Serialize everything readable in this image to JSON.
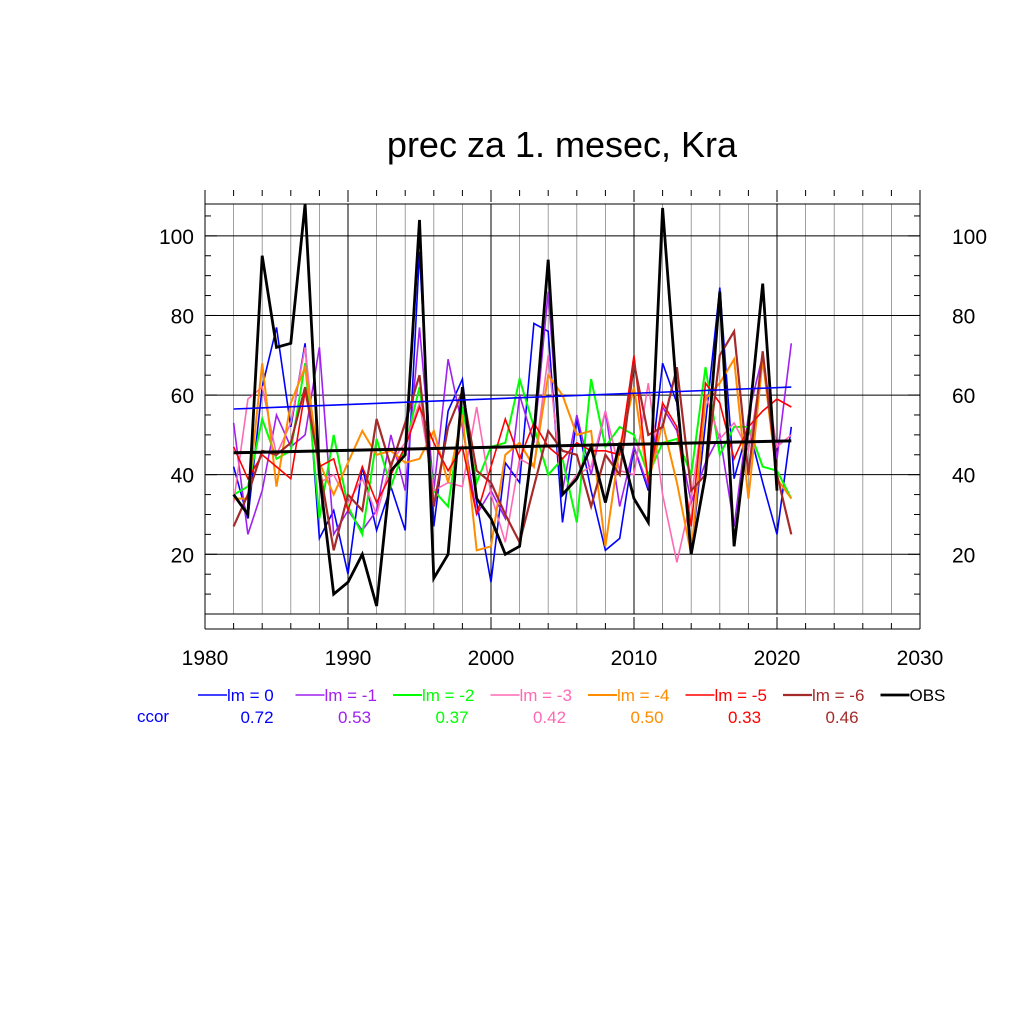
{
  "chart_data": {
    "type": "line",
    "title": "prec za 1. mesec, Kra",
    "xlabel": "",
    "ylabel": "",
    "xlim": [
      1980,
      2030
    ],
    "ylim": [
      5,
      108
    ],
    "x_ticks": [
      1980,
      1990,
      2000,
      2010,
      2020,
      2030
    ],
    "y_ticks": [
      20,
      40,
      60,
      80,
      100
    ],
    "x": [
      1982,
      1983,
      1984,
      1985,
      1986,
      1987,
      1988,
      1989,
      1990,
      1991,
      1992,
      1993,
      1994,
      1995,
      1996,
      1997,
      1998,
      1999,
      2000,
      2001,
      2002,
      2003,
      2004,
      2005,
      2006,
      2007,
      2008,
      2009,
      2010,
      2011,
      2012,
      2013,
      2014,
      2015,
      2016,
      2017,
      2018,
      2019,
      2020,
      2021
    ],
    "ccor_label": "ccor",
    "series": [
      {
        "name": "lm = 0",
        "color": "#0000ff",
        "ccor": "0.72",
        "width": 1.6,
        "values": [
          42,
          29,
          62,
          77,
          52,
          73,
          24,
          31,
          15,
          42,
          26,
          37,
          26,
          96,
          27,
          56,
          64,
          33,
          13,
          43,
          38,
          78,
          76,
          28,
          54,
          36,
          21,
          24,
          47,
          36,
          68,
          58,
          20,
          53,
          87,
          39,
          52,
          38,
          25,
          52
        ],
        "trend": [
          56.5,
          62
        ]
      },
      {
        "name": "lm = -1",
        "color": "#a020f0",
        "ccor": "0.53",
        "width": 1.6,
        "values": [
          53,
          25,
          36,
          55,
          47,
          50,
          72,
          25,
          31,
          26,
          31,
          50,
          36,
          77,
          36,
          69,
          52,
          30,
          36,
          29,
          60,
          48,
          86,
          36,
          55,
          40,
          56,
          32,
          47,
          37,
          57,
          51,
          33,
          43,
          50,
          27,
          55,
          70,
          44,
          73
        ]
      },
      {
        "name": "lm = -2",
        "color": "#00ff00",
        "ccor": "0.37",
        "width": 2,
        "values": [
          35,
          37,
          54,
          44,
          46,
          68,
          29,
          50,
          32,
          25,
          49,
          37,
          47,
          62,
          36,
          32,
          57,
          38,
          47,
          48,
          64,
          52,
          40,
          44,
          28,
          64,
          47,
          52,
          50,
          40,
          48,
          49,
          40,
          67,
          45,
          52,
          52,
          42,
          41,
          34
        ]
      },
      {
        "name": "lm = -3",
        "color": "#ff69b4",
        "ccor": "0.42",
        "width": 1.6,
        "values": [
          33,
          59,
          62,
          45,
          53,
          72,
          38,
          40,
          33,
          39,
          30,
          43,
          48,
          58,
          36,
          38,
          37,
          57,
          35,
          23,
          44,
          42,
          70,
          35,
          40,
          42,
          56,
          41,
          40,
          63,
          35,
          18,
          34,
          60,
          49,
          53,
          46,
          68,
          47,
          50
        ]
      },
      {
        "name": "lm = -4",
        "color": "#ff8c00",
        "ccor": "0.50",
        "width": 2,
        "values": [
          34,
          34,
          68,
          37,
          58,
          67,
          43,
          35,
          43,
          51,
          45,
          46,
          43,
          44,
          51,
          38,
          55,
          21,
          22,
          45,
          48,
          42,
          65,
          60,
          50,
          51,
          22,
          47,
          62,
          38,
          53,
          38,
          20,
          59,
          63,
          69,
          34,
          69,
          39,
          34
        ]
      },
      {
        "name": "lm = -5",
        "color": "#ff0000",
        "ccor": "0.33",
        "width": 1.6,
        "values": [
          47,
          39,
          45,
          42,
          39,
          61,
          42,
          44,
          31,
          42,
          33,
          40,
          47,
          57,
          48,
          41,
          47,
          30,
          42,
          54,
          44,
          53,
          47,
          44,
          48,
          46,
          46,
          45,
          70,
          38,
          58,
          52,
          27,
          63,
          58,
          44,
          52,
          56,
          59,
          57
        ]
      },
      {
        "name": "lm = -6",
        "color": "#a52a2a",
        "ccor": "0.46",
        "width": 2.2,
        "values": [
          27,
          35,
          46,
          45,
          48,
          62,
          42,
          21,
          35,
          31,
          54,
          42,
          53,
          65,
          32,
          52,
          61,
          41,
          38,
          30,
          23,
          37,
          51,
          46,
          45,
          32,
          45,
          40,
          68,
          50,
          52,
          67,
          36,
          40,
          70,
          76,
          40,
          71,
          40,
          25
        ]
      },
      {
        "name": "OBS",
        "color": "#000000",
        "ccor": "",
        "width": 2.8,
        "values": [
          35,
          30,
          95,
          72,
          73,
          108,
          40,
          10,
          13,
          20,
          7,
          41,
          45,
          104,
          14,
          20,
          62,
          34,
          29,
          20,
          22,
          50,
          94,
          35,
          39,
          47,
          33,
          48,
          34,
          28,
          107,
          60,
          20,
          40,
          86,
          22,
          52,
          88,
          36,
          null
        ],
        "trend": [
          45.5,
          48.5
        ]
      }
    ]
  }
}
